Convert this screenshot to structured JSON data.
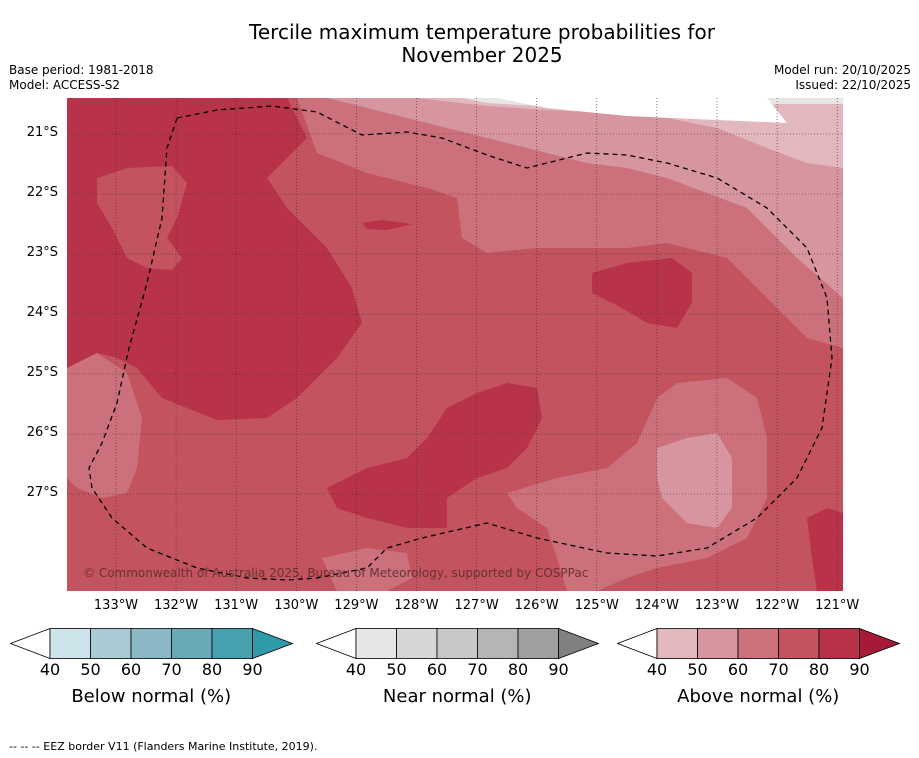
{
  "title": {
    "line1": "Tercile maximum temperature probabilities for",
    "line2": "November 2025"
  },
  "meta": {
    "base_period": "Base period: 1981-2018",
    "model": "Model: ACCESS-S2",
    "model_run": "Model run: 20/10/2025",
    "issued": "Issued: 22/10/2025"
  },
  "map": {
    "lat_labels": [
      "21°S",
      "22°S",
      "23°S",
      "24°S",
      "25°S",
      "26°S",
      "27°S"
    ],
    "lon_labels": [
      "133°W",
      "132°W",
      "131°W",
      "130°W",
      "129°W",
      "128°W",
      "127°W",
      "126°W",
      "125°W",
      "124°W",
      "123°W",
      "122°W",
      "121°W"
    ],
    "copyright": "© Commonwealth of Australia 2025, Bureau of Meteorology, supported by COSPPac"
  },
  "colorbars": [
    {
      "name": "below",
      "title": "Below normal (%)",
      "ticks": [
        "40",
        "50",
        "60",
        "70",
        "80",
        "90"
      ],
      "colors": [
        "#cde4ea",
        "#a9ccd4",
        "#8ab8c4",
        "#69a9b8",
        "#46a0b0",
        "#2f9aaa"
      ]
    },
    {
      "name": "near",
      "title": "Near normal (%)",
      "ticks": [
        "40",
        "50",
        "60",
        "70",
        "80",
        "90"
      ],
      "colors": [
        "#e6e6e6",
        "#d6d6d6",
        "#c8c8c8",
        "#b5b5b5",
        "#a0a0a0",
        "#808080"
      ]
    },
    {
      "name": "above",
      "title": "Above normal (%)",
      "ticks": [
        "40",
        "50",
        "60",
        "70",
        "80",
        "90"
      ],
      "colors": [
        "#e2b7bd",
        "#d7959f",
        "#cc717c",
        "#c2535f",
        "#b83349",
        "#a51a36"
      ]
    }
  ],
  "legend_note": "-- -- -- EEZ border V11 (Flanders Marine Institute, 2019).",
  "colors": {
    "above_50": "#d7959f",
    "above_60": "#cc717c",
    "above_70": "#c2535f",
    "above_80": "#b83349",
    "near_40": "#e6e6e6"
  }
}
